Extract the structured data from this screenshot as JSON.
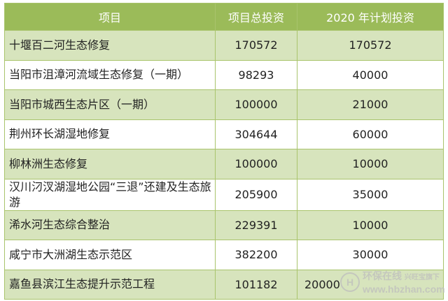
{
  "table": {
    "headers": [
      "项目",
      "项目总投资",
      "2020 年计划投资"
    ],
    "rows": [
      {
        "name": "十堰百二河生态修复",
        "total": "170572",
        "plan2020": "170572"
      },
      {
        "name": "当阳市沮漳河流域生态修复（一期）",
        "total": "98293",
        "plan2020": "40000"
      },
      {
        "name": "当阳市城西生态片区（一期）",
        "total": "100000",
        "plan2020": "21000"
      },
      {
        "name": "荆州环长湖湿地修复",
        "total": "304644",
        "plan2020": "60000"
      },
      {
        "name": "柳林洲生态修复",
        "total": "100000",
        "plan2020": "10000"
      },
      {
        "name": "汉川汈汊湖湿地公园“三退”还建及生态旅游",
        "total": "205900",
        "plan2020": "35000"
      },
      {
        "name": "浠水河生态综合整治",
        "total": "229391",
        "plan2020": "10000"
      },
      {
        "name": "咸宁市大洲湖生态示范区",
        "total": "382200",
        "plan2020": "30000"
      },
      {
        "name": "嘉鱼县滨江生态提升示范工程",
        "total": "101182",
        "plan2020": "20000"
      }
    ]
  },
  "watermark": {
    "brand": "环保在线",
    "sub": "兴旺宝旗下",
    "url": "www.hbzhan.com"
  },
  "colors": {
    "header": "#9bbb59",
    "band": "#d7e4bd"
  }
}
